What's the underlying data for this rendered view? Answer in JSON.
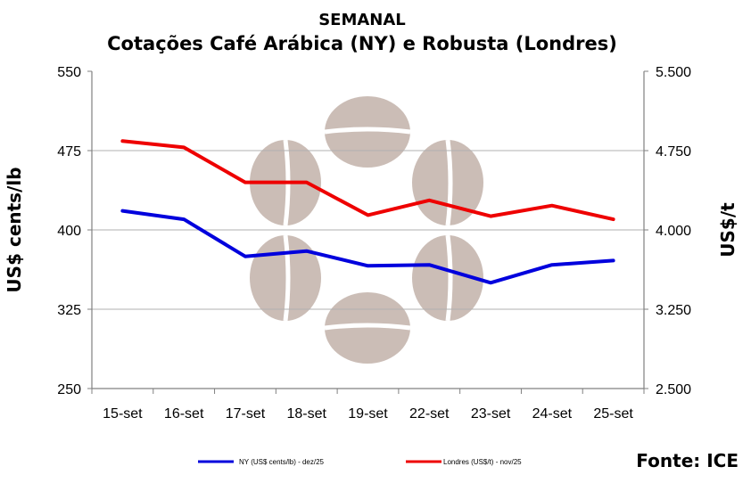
{
  "chart_data": {
    "type": "line",
    "title_line1": "SEMANAL",
    "title_line2": "Cotações Café Arábica (NY) e Robusta (Londres)",
    "categories": [
      "15-set",
      "16-set",
      "17-set",
      "18-set",
      "19-set",
      "22-set",
      "23-set",
      "24-set",
      "25-set"
    ],
    "ylabel_left": "US$ cents/lb",
    "ylabel_right": "US$/t",
    "ylim_left": [
      250,
      550
    ],
    "ylim_right": [
      2500,
      5500
    ],
    "yticks_left": [
      "550",
      "475",
      "400",
      "325",
      "250"
    ],
    "yticks_right": [
      "5.500",
      "4.750",
      "4.000",
      "3.250",
      "2.500"
    ],
    "grid": true,
    "legend_position": "bottom",
    "series": [
      {
        "name": "NY (US$ cents/lb) - dez/25",
        "axis": "left",
        "color": "#0000dd",
        "values": [
          418,
          410,
          375,
          380,
          366,
          367,
          350,
          367,
          371
        ]
      },
      {
        "name": "Londres (US$/t) - nov/25",
        "axis": "right",
        "color": "#ee0000",
        "values": [
          4840,
          4780,
          4450,
          4450,
          4140,
          4280,
          4130,
          4230,
          4100
        ]
      }
    ]
  },
  "source": "Fonte: ICE"
}
